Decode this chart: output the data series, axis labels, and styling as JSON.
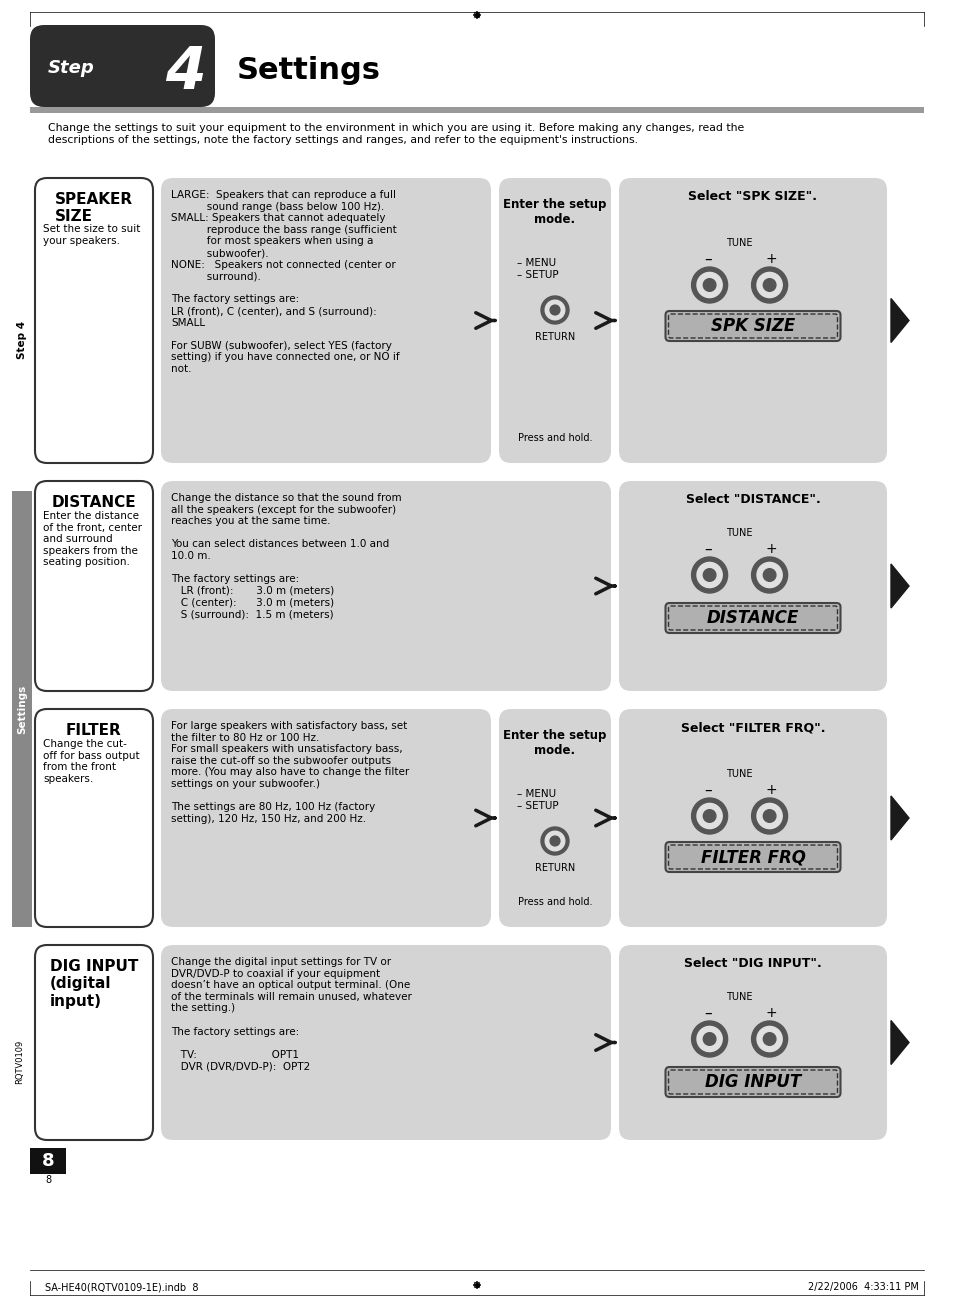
{
  "page_bg": "#ffffff",
  "header_bg": "#2d2d2d",
  "header_text_step": "Step",
  "header_number": "4",
  "header_title": "Settings",
  "gray_bar_color": "#999999",
  "intro_text": "Change the settings to suit your equipment to the environment in which you are using it. Before making any changes, read the\ndescriptions of the settings, note the factory settings and ranges, and refer to the equipment's instructions.",
  "left_box_bg": "#ffffff",
  "left_box_border": "#333333",
  "mid_box_bg": "#d4d4d4",
  "right_box_bg": "#d4d4d4",
  "setup_box_bg": "#d4d4d4",
  "arrow_color": "#1a1a1a",
  "section1_title": "SPEAKER\nSIZE",
  "section1_subtitle": "Set the size to suit\nyour speakers.",
  "section1_mid_text": "LARGE:  Speakers that can reproduce a full\n           sound range (bass below 100 Hz).\nSMALL: Speakers that cannot adequately\n           reproduce the bass range (sufficient\n           for most speakers when using a\n           subwoofer).\nNONE:   Speakers not connected (center or\n           surround).\n\nThe factory settings are:\nLR (front), C (center), and S (surround):\nSMALL\n\nFor SUBW (subwoofer), select YES (factory\nsetting) if you have connected one, or NO if\nnot.",
  "section1_setup_title": "Enter the setup\nmode.",
  "section1_right_title": "Select \"SPK SIZE\".",
  "section1_display": "SPK SIZE",
  "section2_title": "DISTANCE",
  "section2_subtitle": "Enter the distance\nof the front, center\nand surround\nspeakers from the\nseating position.",
  "section2_mid_text": "Change the distance so that the sound from\nall the speakers (except for the subwoofer)\nreaches you at the same time.\n\nYou can select distances between 1.0 and\n10.0 m.\n\nThe factory settings are:\n   LR (front):       3.0 m (meters)\n   C (center):      3.0 m (meters)\n   S (surround):  1.5 m (meters)",
  "section2_right_title": "Select \"DISTANCE\".",
  "section2_display": "DISTANCE",
  "section3_title": "FILTER",
  "section3_subtitle": "Change the cut-\noff for bass output\nfrom the front\nspeakers.",
  "section3_mid_text": "For large speakers with satisfactory bass, set\nthe filter to 80 Hz or 100 Hz.\nFor small speakers with unsatisfactory bass,\nraise the cut-off so the subwoofer outputs\nmore. (You may also have to change the filter\nsettings on your subwoofer.)\n\nThe settings are 80 Hz, 100 Hz (factory\nsetting), 120 Hz, 150 Hz, and 200 Hz.",
  "section3_setup_title": "Enter the setup\nmode.",
  "section3_right_title": "Select \"FILTER FRQ\".",
  "section3_display": "FILTER FRQ",
  "section4_title": "DIG INPUT\n(digital\ninput)",
  "section4_mid_text": "Change the digital input settings for TV or\nDVR/DVD-P to coaxial if your equipment\ndoesn’t have an optical output terminal. (One\nof the terminals will remain unused, whatever\nthe setting.)\n\nThe factory settings are:\n\n   TV:                       OPT1\n   DVR (DVR/DVD-P):  OPT2",
  "section4_right_title": "Select \"DIG INPUT\".",
  "section4_display": "DIG INPUT",
  "sidebar_step": "Step 4",
  "sidebar_settings": "Settings",
  "page_number": "8",
  "footer_left": "SA-HE40(RQTV0109-1E).indb  8",
  "footer_right": "2/22/2006  4:33:11 PM",
  "rqtv": "RQTV0109"
}
